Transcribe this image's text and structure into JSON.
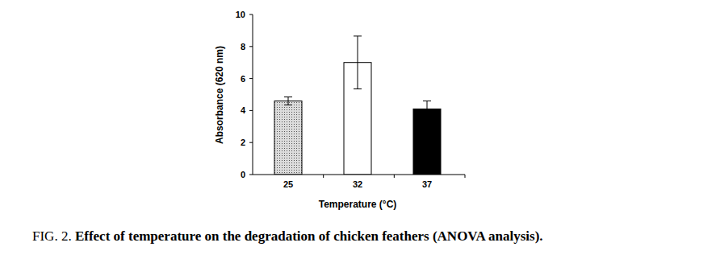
{
  "chart_data": {
    "type": "bar",
    "title": "FIG. 2. Effect of temperature on the degradation of chicken feathers (ANOVA analysis).",
    "x_label": "Temperature (°C)",
    "y_label": "Absorbance (620 nm)",
    "categories": [
      "25",
      "32",
      "37"
    ],
    "values": [
      4.6,
      7.0,
      4.1
    ],
    "errors": [
      0.25,
      1.65,
      0.5
    ],
    "colors": [
      "#dcdcdc",
      "#ffffff",
      "#000000"
    ],
    "ylim": [
      0,
      10
    ],
    "yticks": [
      0,
      2,
      4,
      6,
      8,
      10
    ],
    "grid": false
  }
}
